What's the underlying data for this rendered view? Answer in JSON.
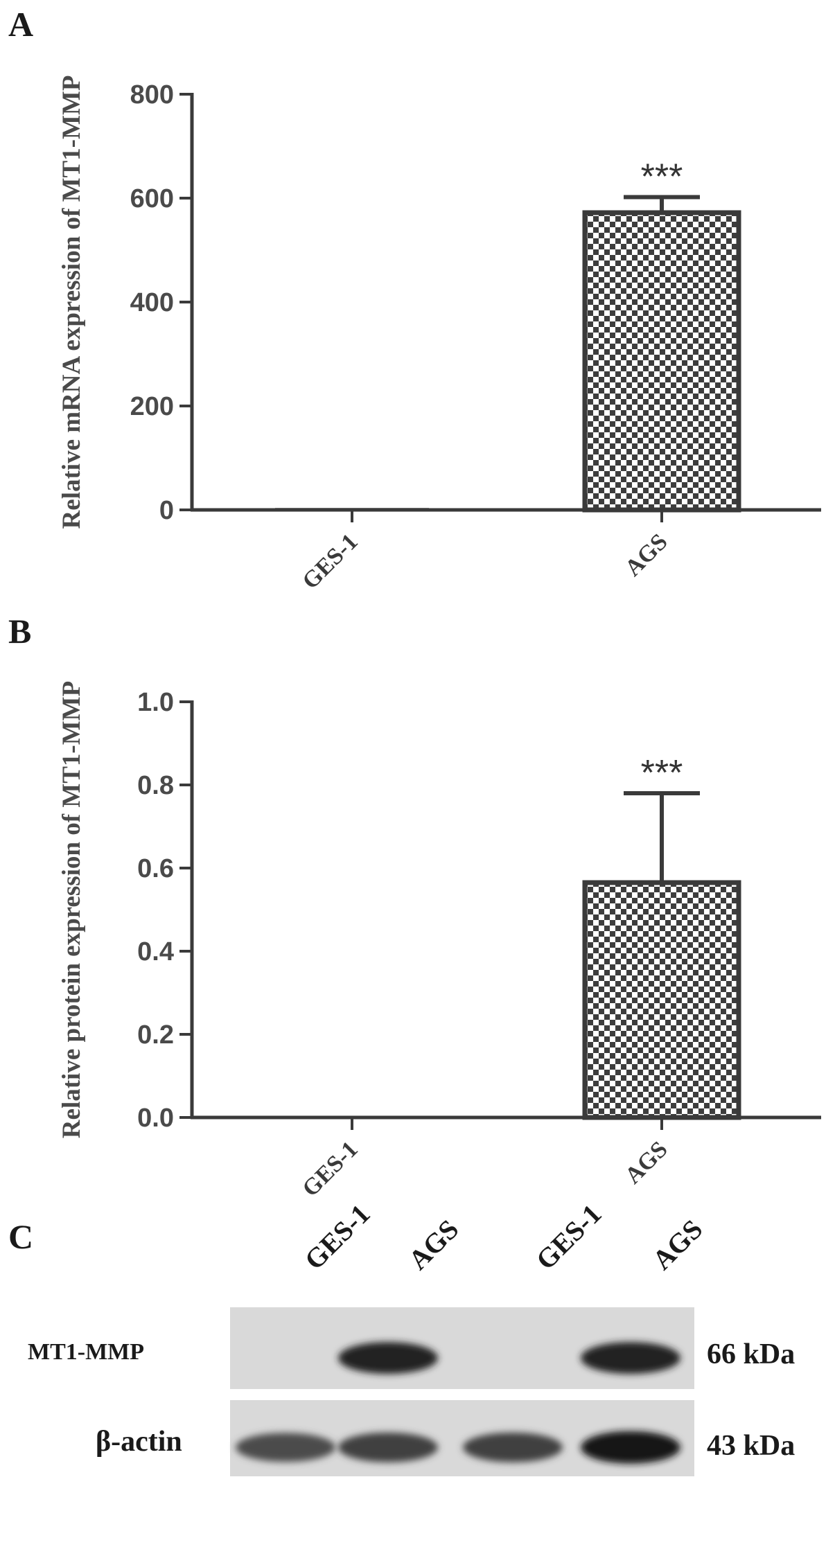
{
  "panels": {
    "a": "A",
    "b": "B",
    "c": "C"
  },
  "chart_data": [
    {
      "type": "bar",
      "panel": "A",
      "categories": [
        "GES-1",
        "AGS"
      ],
      "values": [
        1,
        572
      ],
      "errors": [
        0,
        30
      ],
      "significance": [
        "",
        "***"
      ],
      "ylabel": "Relative mRNA expression of MT1-MMP",
      "ylim": [
        0,
        800
      ],
      "yticks": [
        0,
        200,
        400,
        600,
        800
      ],
      "ytick_labels": [
        "0",
        "200",
        "400",
        "600",
        "800"
      ],
      "bar_patterns": [
        "none",
        "checkerboard"
      ],
      "grid": false
    },
    {
      "type": "bar",
      "panel": "B",
      "categories": [
        "GES-1",
        "AGS"
      ],
      "values": [
        0,
        0.565
      ],
      "errors": [
        0,
        0.215
      ],
      "significance": [
        "",
        "***"
      ],
      "ylabel": "Relative protein expression of MT1-MMP",
      "ylim": [
        0,
        1.0
      ],
      "yticks": [
        0,
        0.2,
        0.4,
        0.6,
        0.8,
        1.0
      ],
      "ytick_labels": [
        "0.0",
        "0.2",
        "0.4",
        "0.6",
        "0.8",
        "1.0"
      ],
      "bar_patterns": [
        "none",
        "checkerboard"
      ],
      "grid": false
    }
  ],
  "blot": {
    "lanes": [
      "GES-1",
      "AGS",
      "GES-1",
      "AGS"
    ],
    "rows": [
      {
        "protein": "MT1-MMP",
        "size": "66 kDa",
        "band_intensity": [
          0,
          0.9,
          0,
          0.9
        ]
      },
      {
        "protein": "β-actin",
        "size": "43 kDa",
        "band_intensity": [
          0.7,
          0.75,
          0.75,
          0.95
        ]
      }
    ]
  }
}
